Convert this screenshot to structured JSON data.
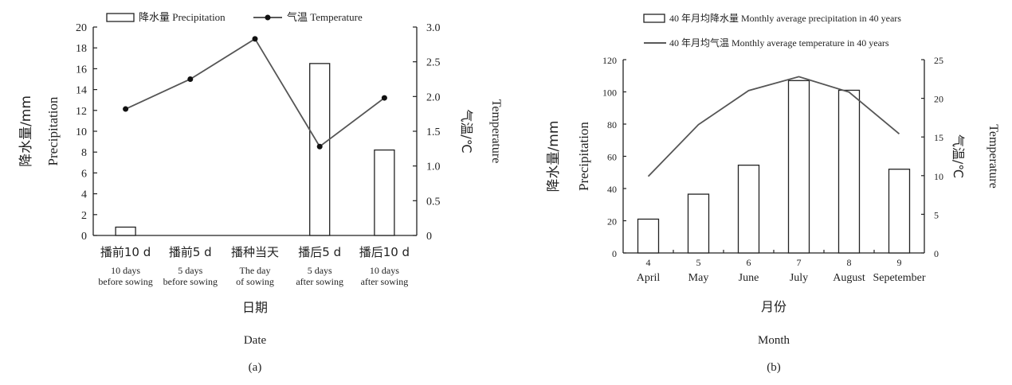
{
  "chart_data": [
    {
      "type": "bar",
      "panel_label": "(a)",
      "categories": [
        "播前10 d",
        "播前5 d",
        "播种当天",
        "播后5 d",
        "播后10 d"
      ],
      "categories_en": [
        [
          "10 days",
          "before sowing"
        ],
        [
          "5 days",
          "before sowing"
        ],
        [
          "The day",
          "of sowing"
        ],
        [
          "5 days",
          "after sowing"
        ],
        [
          "10 days",
          "after sowing"
        ]
      ],
      "series": [
        {
          "name": "降水量 Precipitation",
          "type": "bar",
          "axis": "left",
          "values": [
            0.8,
            0,
            0,
            16.5,
            8.2
          ]
        },
        {
          "name": "气温 Temperature",
          "type": "line",
          "marker": "dot",
          "axis": "right",
          "values": [
            1.82,
            2.25,
            2.83,
            1.28,
            1.98
          ]
        }
      ],
      "legend": [
        "降水量 Precipitation",
        "气温 Temperature"
      ],
      "legend_position": "top",
      "xlabel": "日期",
      "xlabel_en": "Date",
      "ylabel": "降水量/mm",
      "ylabel_en": "Precipitation",
      "y2label": "气温/℃",
      "y2label_en": "Temperature",
      "ylim": [
        0,
        20
      ],
      "yticks": [
        "0",
        "2",
        "4",
        "6",
        "8",
        "10",
        "12",
        "14",
        "16",
        "18",
        "20"
      ],
      "y2lim": [
        0,
        3.0
      ],
      "y2ticks": [
        "0",
        "0.5",
        "1.0",
        "1.5",
        "2.0",
        "2.5",
        "3.0"
      ],
      "grid": false
    },
    {
      "type": "bar",
      "panel_label": "(b)",
      "categories": [
        "4",
        "5",
        "6",
        "7",
        "8",
        "9"
      ],
      "categories_en": [
        "April",
        "May",
        "June",
        "July",
        "August",
        "Sepetember"
      ],
      "series": [
        {
          "name": "40 年月均降水量 Monthly average precipitation in 40 years",
          "type": "bar",
          "axis": "left",
          "values": [
            21,
            36.5,
            54.5,
            107,
            101,
            52
          ]
        },
        {
          "name": "40 年月均气温 Monthly average temperature in 40 years",
          "type": "line",
          "axis": "right",
          "values": [
            9.9,
            16.6,
            21,
            22.8,
            20.8,
            15.4
          ]
        }
      ],
      "legend": [
        "40 年月均降水量 Monthly average precipitation in 40 years",
        "40 年月均气温 Monthly average temperature in 40 years"
      ],
      "legend_position": "top",
      "xlabel": "月份",
      "xlabel_en": "Month",
      "ylabel": "降水量/mm",
      "ylabel_en": "Precipitation",
      "y2label": "气温/℃",
      "y2label_en": "Temperature",
      "ylim": [
        0,
        120
      ],
      "yticks": [
        "0",
        "20",
        "40",
        "60",
        "80",
        "100",
        "120"
      ],
      "y2lim": [
        0,
        25
      ],
      "y2ticks": [
        "0",
        "5",
        "10",
        "15",
        "20",
        "25"
      ],
      "grid": false
    }
  ],
  "colors": {
    "axis": "#222222",
    "line": "#555555",
    "bar_fill": "#ffffff",
    "bar_stroke": "#222222",
    "marker": "#111111"
  }
}
